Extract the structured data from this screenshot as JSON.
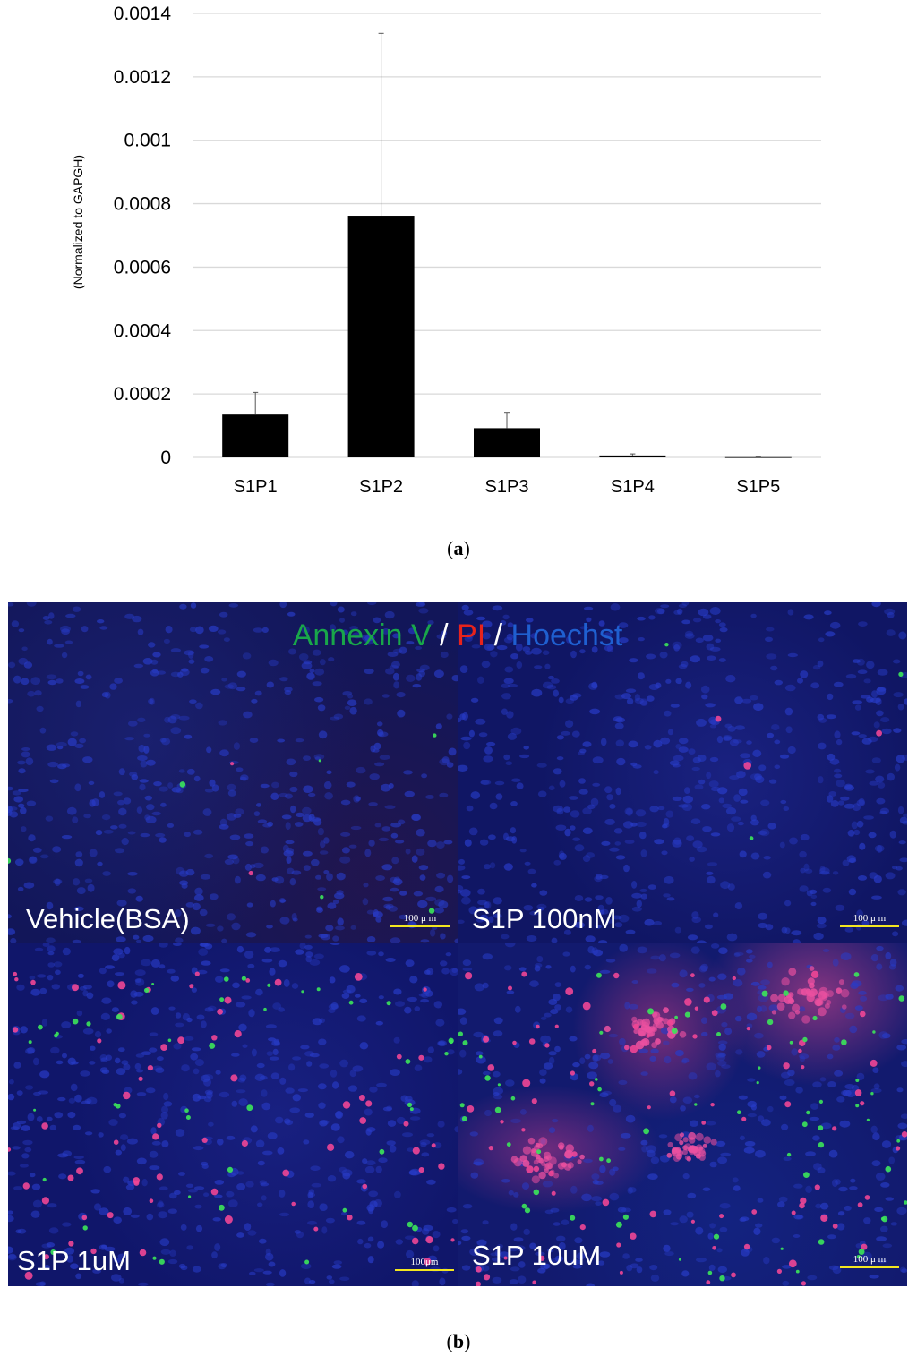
{
  "chart_data": {
    "type": "bar",
    "categories": [
      "S1P1",
      "S1P2",
      "S1P3",
      "S1P4",
      "S1P5"
    ],
    "values": [
      0.000135,
      0.000762,
      9.2e-05,
      6e-06,
      6e-07
    ],
    "errors": [
      7e-05,
      0.000575,
      5e-05,
      5e-06,
      6e-07
    ],
    "ylabel": "(Normalized to GAPGH)",
    "ylim": [
      0,
      0.0014
    ],
    "yticks": [
      "0",
      "0.0002",
      "0.0004",
      "0.0006",
      "0.0008",
      "0.001",
      "0.0012",
      "0.0014"
    ],
    "grid": true,
    "bar_color": "#000000",
    "grid_color": "#d9d9d9"
  },
  "captions": {
    "a_open": "(",
    "a_letter": "a",
    "a_close": ")",
    "b_open": "(",
    "b_letter": "b",
    "b_close": ")"
  },
  "figure_b": {
    "stain_title": {
      "annexin": "Annexin V",
      "slash1": " / ",
      "pi": "PI",
      "slash2": " / ",
      "hoechst": "Hoechst"
    },
    "colors": {
      "annexin": "#19a64a",
      "pi": "#e8231c",
      "hoechst": "#1f5fd0",
      "scale_bar": "#f3e620"
    },
    "panels": [
      {
        "label": "Vehicle(BSA)",
        "scale": "100 μ m"
      },
      {
        "label": "S1P 100nM",
        "scale": "100 μ m"
      },
      {
        "label": "S1P 1uM",
        "scale": "100μm"
      },
      {
        "label": "S1P 10uM",
        "scale": "100 μ m"
      }
    ]
  }
}
